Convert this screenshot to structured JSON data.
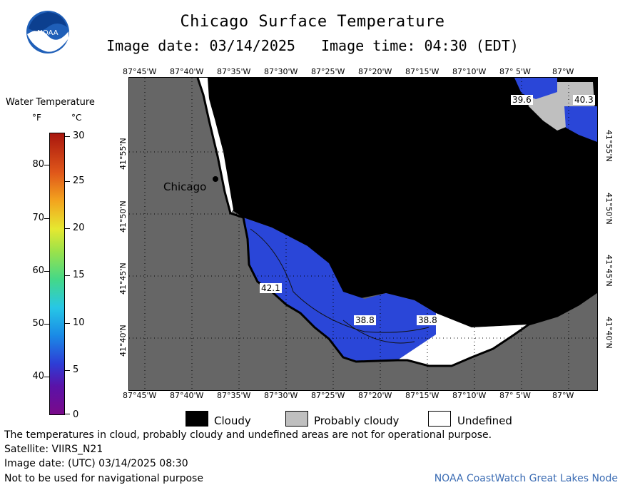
{
  "header": {
    "title": "Chicago Surface Temperature",
    "image_date": "Image date: 03/14/2025",
    "image_time": "Image time: 04:30 (EDT)"
  },
  "logo": {
    "text": "NOAA",
    "icon": "noaa-logo-icon"
  },
  "legend": {
    "title": "Water Temperature",
    "unit_f": "°F",
    "unit_c": "°C",
    "f_ticks": [
      "80",
      "70",
      "60",
      "50",
      "40"
    ],
    "c_ticks": [
      "30",
      "25",
      "20",
      "15",
      "10",
      "5",
      "0"
    ],
    "f_range": [
      32,
      86
    ],
    "c_range": [
      0,
      30
    ]
  },
  "map": {
    "lon_labels": [
      "87°45'W",
      "87°40'W",
      "87°35'W",
      "87°30'W",
      "87°25'W",
      "87°20'W",
      "87°15'W",
      "87°10'W",
      "87° 5'W",
      "87°W"
    ],
    "lat_labels": [
      "41°55'N",
      "41°50'N",
      "41°45'N",
      "41°40'N"
    ],
    "city": "Chicago",
    "temp_labels": [
      "39.6",
      "40.3",
      "42.1",
      "38.8",
      "38.8"
    ]
  },
  "key": {
    "cloudy": "Cloudy",
    "probably_cloudy": "Probably cloudy",
    "undefined": "Undefined"
  },
  "footer": {
    "line1": "The temperatures in cloud, probably cloudy and undefined areas are not for operational purpose.",
    "line2": "Satellite: VIIRS_N21",
    "line3": "Image date: (UTC) 03/14/2025  08:30",
    "line4": "Not to be used for navigational purpose",
    "credit": "NOAA CoastWatch Great Lakes Node"
  },
  "colors": {
    "land": "#666666",
    "cloud": "#000000",
    "water_cold": "#2a46d8",
    "probably_cloudy": "#bfbfbf",
    "undefined": "#ffffff"
  }
}
